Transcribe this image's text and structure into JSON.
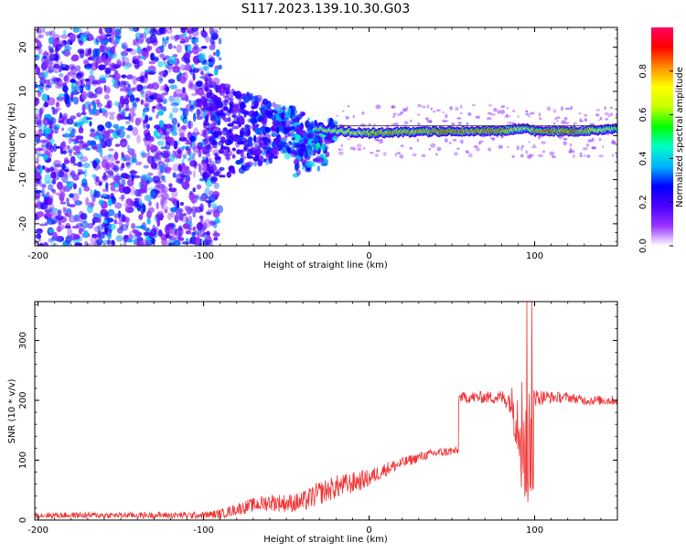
{
  "title": "S117.2023.139.10.30.G03",
  "chart_data": [
    {
      "type": "heatmap",
      "xlabel": "Height of straight line (km)",
      "ylabel": "Frequency (Hz)",
      "xlim": [
        -202,
        150
      ],
      "ylim": [
        -25,
        24.5
      ],
      "x_ticks": [
        -200,
        -100,
        0,
        100
      ],
      "y_ticks": [
        -20,
        -10,
        0,
        10,
        20
      ],
      "colorbar": {
        "label": "Normalized spectral amplitude",
        "range": [
          0,
          1
        ],
        "ticks": [
          0.0,
          0.2,
          0.4,
          0.6,
          0.8
        ],
        "colors": [
          "#ffffff",
          "#9933ff",
          "#4b00ff",
          "#0000ff",
          "#00b4ff",
          "#00ffc8",
          "#00ff00",
          "#c8ff00",
          "#ffff00",
          "#ff8c00",
          "#ff0000",
          "#ff0064"
        ]
      },
      "ridge": {
        "description_points_x": [
          -30,
          -20,
          0,
          20,
          50,
          80,
          90,
          97,
          100,
          125,
          150
        ],
        "frequency_hz": [
          1.5,
          1.0,
          0.5,
          0.8,
          1.0,
          1.0,
          1.5,
          1.5,
          1.0,
          1.0,
          1.5
        ],
        "peak_amplitude": [
          0.6,
          0.7,
          0.8,
          0.8,
          0.85,
          0.85,
          0.7,
          0.6,
          0.85,
          0.85,
          0.6
        ]
      },
      "noise_region": {
        "x_range": [
          -202,
          -90
        ],
        "freq_range": [
          -25,
          24.5
        ],
        "amplitude": 0.25
      }
    },
    {
      "type": "line",
      "xlabel": "Height of straight line (km)",
      "ylabel": "SNR (10 * v/v)",
      "xlim": [
        -202,
        150
      ],
      "ylim": [
        0,
        365
      ],
      "x_ticks": [
        -200,
        -100,
        0,
        100
      ],
      "y_ticks": [
        0,
        100,
        200,
        300
      ],
      "series": [
        {
          "color": "#ee3333",
          "x": [
            -202,
            -150,
            -100,
            -90,
            -80,
            -70,
            -60,
            -50,
            -40,
            -30,
            -20,
            -10,
            0,
            10,
            20,
            30,
            40,
            50,
            54,
            55,
            60,
            70,
            80,
            85,
            90,
            93,
            95,
            97,
            100,
            110,
            120,
            130,
            140,
            150
          ],
          "y": [
            8,
            8,
            8,
            10,
            18,
            25,
            30,
            28,
            30,
            45,
            55,
            62,
            70,
            85,
            95,
            105,
            112,
            115,
            115,
            205,
            205,
            205,
            205,
            200,
            170,
            160,
            90,
            150,
            205,
            205,
            205,
            200,
            200,
            200
          ],
          "noise": [
            5,
            5,
            6,
            8,
            10,
            12,
            15,
            15,
            18,
            20,
            20,
            18,
            15,
            12,
            10,
            8,
            8,
            8,
            6,
            8,
            10,
            10,
            12,
            20,
            70,
            90,
            120,
            90,
            15,
            10,
            8,
            8,
            8,
            8
          ]
        }
      ]
    }
  ]
}
